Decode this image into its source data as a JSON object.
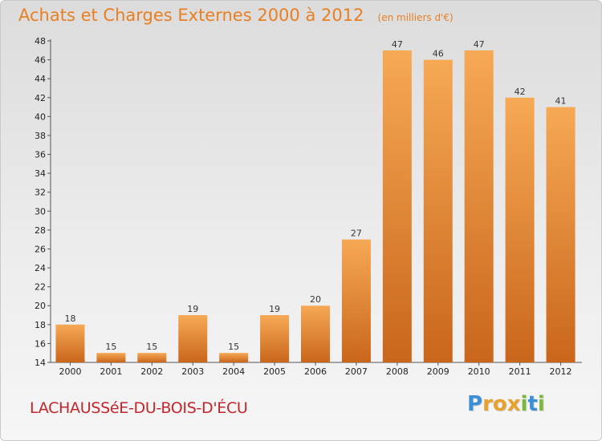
{
  "header": {
    "title": "Achats et Charges Externes 2000 à 2012",
    "unit": "(en milliers d'€)"
  },
  "footer": {
    "commune": "LACHAUSSéE-DU-BOIS-D'ÉCU",
    "brand": "Proxiti"
  },
  "colors": {
    "title": "#e87f22",
    "commune": "#c2252b",
    "bar_top": "#f6a955",
    "bar_bottom": "#c9661c",
    "brand_letters": [
      "#3c8fd6",
      "#e8a12c",
      "#e8a12c",
      "#e8a12c",
      "#7db83e",
      "#3c8fd6",
      "#7db83e"
    ]
  },
  "chart_data": {
    "type": "bar",
    "categories": [
      "2000",
      "2001",
      "2002",
      "2003",
      "2004",
      "2005",
      "2006",
      "2007",
      "2008",
      "2009",
      "2010",
      "2011",
      "2012"
    ],
    "values": [
      18,
      15,
      15,
      19,
      15,
      19,
      20,
      27,
      47,
      46,
      47,
      42,
      41
    ],
    "ylim": [
      14,
      48
    ],
    "yticks": [
      14,
      16,
      18,
      20,
      22,
      24,
      26,
      28,
      30,
      32,
      34,
      36,
      38,
      40,
      42,
      44,
      46,
      48
    ],
    "grid": false,
    "data_labels": true
  }
}
